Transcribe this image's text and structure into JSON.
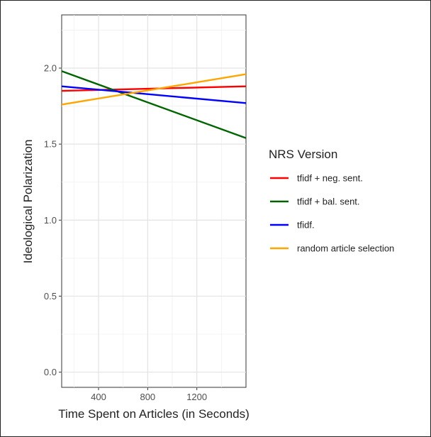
{
  "chart_data": {
    "type": "line",
    "xlabel": "Time Spent on Articles (in Seconds)",
    "ylabel": "Ideological Polarization",
    "xlim": [
      100,
      1600
    ],
    "ylim": [
      -0.1,
      2.35
    ],
    "x_ticks": [
      400,
      800,
      1200
    ],
    "y_ticks": [
      0.0,
      0.5,
      1.0,
      1.5,
      2.0
    ],
    "x_tick_labels": [
      "400",
      "800",
      "1200"
    ],
    "y_tick_labels": [
      "0.0",
      "0.5",
      "1.0",
      "1.5",
      "2.0"
    ],
    "grid": true,
    "legend": {
      "title": "NRS Version",
      "placement": "right"
    },
    "series": [
      {
        "name": "tfidf + neg. sent.",
        "color": "#ff0000",
        "x": [
          100,
          1600
        ],
        "y": [
          1.85,
          1.88
        ]
      },
      {
        "name": "tfidf + bal. sent.",
        "color": "#006400",
        "x": [
          100,
          1600
        ],
        "y": [
          1.98,
          1.54
        ]
      },
      {
        "name": "tfidf.",
        "color": "#0000ff",
        "x": [
          100,
          1600
        ],
        "y": [
          1.88,
          1.77
        ]
      },
      {
        "name": "random article selection",
        "color": "#ffa500",
        "x": [
          100,
          1600
        ],
        "y": [
          1.76,
          1.96
        ]
      }
    ]
  }
}
